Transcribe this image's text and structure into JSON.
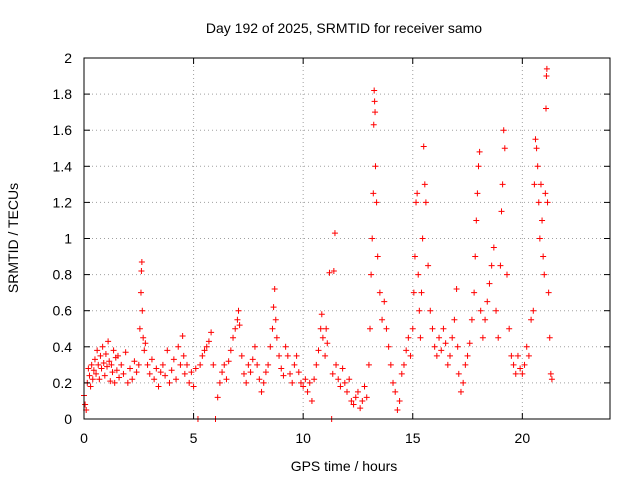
{
  "chart_data": {
    "type": "scatter",
    "title": "Day 192 of 2025, SRMTID for receiver samo",
    "xlabel": "GPS time / hours",
    "ylabel": "SRMTID / TECUs",
    "xlim": [
      0,
      24
    ],
    "ylim": [
      0,
      2
    ],
    "xticks": [
      0,
      5,
      10,
      15,
      20
    ],
    "yticks": [
      0,
      0.2,
      0.4,
      0.6,
      0.8,
      1,
      1.2,
      1.4,
      1.6,
      1.8,
      2
    ],
    "grid": true,
    "marker": "+",
    "color": "#ff0000",
    "series": [
      {
        "name": "SRMTID",
        "points": [
          [
            0.0,
            0.13
          ],
          [
            0.05,
            0.08
          ],
          [
            0.1,
            0.05
          ],
          [
            0.15,
            0.2
          ],
          [
            0.2,
            0.28
          ],
          [
            0.25,
            0.24
          ],
          [
            0.3,
            0.18
          ],
          [
            0.35,
            0.3
          ],
          [
            0.4,
            0.22
          ],
          [
            0.45,
            0.27
          ],
          [
            0.5,
            0.33
          ],
          [
            0.55,
            0.25
          ],
          [
            0.6,
            0.38
          ],
          [
            0.65,
            0.3
          ],
          [
            0.7,
            0.22
          ],
          [
            0.75,
            0.35
          ],
          [
            0.8,
            0.28
          ],
          [
            0.85,
            0.4
          ],
          [
            0.9,
            0.31
          ],
          [
            0.95,
            0.24
          ],
          [
            1.0,
            0.36
          ],
          [
            1.05,
            0.29
          ],
          [
            1.1,
            0.43
          ],
          [
            1.15,
            0.32
          ],
          [
            1.2,
            0.21
          ],
          [
            1.25,
            0.3
          ],
          [
            1.3,
            0.26
          ],
          [
            1.35,
            0.38
          ],
          [
            1.4,
            0.2
          ],
          [
            1.45,
            0.34
          ],
          [
            1.5,
            0.27
          ],
          [
            1.55,
            0.35
          ],
          [
            1.6,
            0.23
          ],
          [
            1.7,
            0.3
          ],
          [
            1.8,
            0.25
          ],
          [
            1.9,
            0.37
          ],
          [
            2.0,
            0.2
          ],
          [
            2.1,
            0.28
          ],
          [
            2.2,
            0.22
          ],
          [
            2.3,
            0.32
          ],
          [
            2.4,
            0.26
          ],
          [
            2.5,
            0.3
          ],
          [
            2.55,
            0.5
          ],
          [
            2.6,
            0.7
          ],
          [
            2.62,
            0.82
          ],
          [
            2.64,
            0.87
          ],
          [
            2.66,
            0.6
          ],
          [
            2.7,
            0.45
          ],
          [
            2.75,
            0.38
          ],
          [
            2.8,
            0.42
          ],
          [
            2.9,
            0.3
          ],
          [
            3.0,
            0.25
          ],
          [
            3.1,
            0.33
          ],
          [
            3.2,
            0.22
          ],
          [
            3.3,
            0.28
          ],
          [
            3.4,
            0.18
          ],
          [
            3.5,
            0.26
          ],
          [
            3.6,
            0.3
          ],
          [
            3.7,
            0.24
          ],
          [
            3.8,
            0.38
          ],
          [
            3.9,
            0.2
          ],
          [
            4.0,
            0.27
          ],
          [
            4.1,
            0.33
          ],
          [
            4.2,
            0.22
          ],
          [
            4.3,
            0.4
          ],
          [
            4.4,
            0.3
          ],
          [
            4.5,
            0.46
          ],
          [
            4.55,
            0.35
          ],
          [
            4.6,
            0.25
          ],
          [
            4.7,
            0.3
          ],
          [
            4.8,
            0.2
          ],
          [
            4.9,
            0.26
          ],
          [
            5.0,
            0.18
          ],
          [
            5.1,
            0.28
          ],
          [
            5.2,
            0.0
          ],
          [
            5.3,
            0.3
          ],
          [
            5.4,
            0.35
          ],
          [
            5.5,
            0.38
          ],
          [
            5.6,
            0.4
          ],
          [
            5.7,
            0.43
          ],
          [
            5.8,
            0.48
          ],
          [
            5.9,
            0.3
          ],
          [
            6.0,
            0.0
          ],
          [
            6.1,
            0.12
          ],
          [
            6.2,
            0.2
          ],
          [
            6.3,
            0.26
          ],
          [
            6.4,
            0.3
          ],
          [
            6.5,
            0.22
          ],
          [
            6.6,
            0.32
          ],
          [
            6.7,
            0.38
          ],
          [
            6.8,
            0.45
          ],
          [
            6.9,
            0.5
          ],
          [
            7.0,
            0.55
          ],
          [
            7.05,
            0.6
          ],
          [
            7.1,
            0.52
          ],
          [
            7.2,
            0.35
          ],
          [
            7.3,
            0.25
          ],
          [
            7.4,
            0.2
          ],
          [
            7.5,
            0.3
          ],
          [
            7.6,
            0.26
          ],
          [
            7.7,
            0.33
          ],
          [
            7.8,
            0.4
          ],
          [
            7.9,
            0.3
          ],
          [
            8.0,
            0.22
          ],
          [
            8.1,
            0.15
          ],
          [
            8.2,
            0.2
          ],
          [
            8.3,
            0.26
          ],
          [
            8.4,
            0.3
          ],
          [
            8.5,
            0.4
          ],
          [
            8.6,
            0.5
          ],
          [
            8.65,
            0.62
          ],
          [
            8.7,
            0.72
          ],
          [
            8.75,
            0.55
          ],
          [
            8.8,
            0.45
          ],
          [
            8.9,
            0.35
          ],
          [
            9.0,
            0.28
          ],
          [
            9.1,
            0.24
          ],
          [
            9.2,
            0.4
          ],
          [
            9.3,
            0.35
          ],
          [
            9.4,
            0.25
          ],
          [
            9.5,
            0.2
          ],
          [
            9.6,
            0.3
          ],
          [
            9.7,
            0.35
          ],
          [
            9.8,
            0.26
          ],
          [
            9.9,
            0.2
          ],
          [
            10.0,
            0.18
          ],
          [
            10.1,
            0.22
          ],
          [
            10.2,
            0.15
          ],
          [
            10.3,
            0.2
          ],
          [
            10.4,
            0.1
          ],
          [
            10.5,
            0.22
          ],
          [
            10.6,
            0.3
          ],
          [
            10.7,
            0.38
          ],
          [
            10.8,
            0.5
          ],
          [
            10.85,
            0.58
          ],
          [
            10.9,
            0.45
          ],
          [
            11.0,
            0.35
          ],
          [
            11.05,
            0.5
          ],
          [
            11.1,
            0.42
          ],
          [
            11.2,
            0.81
          ],
          [
            11.3,
            0.0
          ],
          [
            11.35,
            0.25
          ],
          [
            11.4,
            0.82
          ],
          [
            11.45,
            1.03
          ],
          [
            11.5,
            0.3
          ],
          [
            11.6,
            0.22
          ],
          [
            11.7,
            0.18
          ],
          [
            11.8,
            0.28
          ],
          [
            11.9,
            0.2
          ],
          [
            12.0,
            0.15
          ],
          [
            12.1,
            0.22
          ],
          [
            12.2,
            0.1
          ],
          [
            12.3,
            0.08
          ],
          [
            12.4,
            0.12
          ],
          [
            12.5,
            0.15
          ],
          [
            12.6,
            0.06
          ],
          [
            12.7,
            0.1
          ],
          [
            12.8,
            0.18
          ],
          [
            12.9,
            0.12
          ],
          [
            13.0,
            0.3
          ],
          [
            13.05,
            0.5
          ],
          [
            13.1,
            0.8
          ],
          [
            13.15,
            1.0
          ],
          [
            13.2,
            1.25
          ],
          [
            13.22,
            1.63
          ],
          [
            13.24,
            1.82
          ],
          [
            13.26,
            1.76
          ],
          [
            13.28,
            1.7
          ],
          [
            13.3,
            1.4
          ],
          [
            13.35,
            1.2
          ],
          [
            13.4,
            0.9
          ],
          [
            13.5,
            0.7
          ],
          [
            13.6,
            0.55
          ],
          [
            13.7,
            0.65
          ],
          [
            13.8,
            0.5
          ],
          [
            13.9,
            0.4
          ],
          [
            14.0,
            0.3
          ],
          [
            14.1,
            0.2
          ],
          [
            14.2,
            0.15
          ],
          [
            14.3,
            0.05
          ],
          [
            14.4,
            0.1
          ],
          [
            14.5,
            0.25
          ],
          [
            14.6,
            0.3
          ],
          [
            14.7,
            0.38
          ],
          [
            14.8,
            0.45
          ],
          [
            14.9,
            0.35
          ],
          [
            15.0,
            0.5
          ],
          [
            15.05,
            0.7
          ],
          [
            15.1,
            0.9
          ],
          [
            15.15,
            1.2
          ],
          [
            15.2,
            1.25
          ],
          [
            15.25,
            0.8
          ],
          [
            15.3,
            0.6
          ],
          [
            15.35,
            0.45
          ],
          [
            15.4,
            0.7
          ],
          [
            15.45,
            1.0
          ],
          [
            15.5,
            1.51
          ],
          [
            15.55,
            1.3
          ],
          [
            15.6,
            1.2
          ],
          [
            15.7,
            0.85
          ],
          [
            15.8,
            0.6
          ],
          [
            15.9,
            0.5
          ],
          [
            16.0,
            0.4
          ],
          [
            16.1,
            0.35
          ],
          [
            16.2,
            0.45
          ],
          [
            16.3,
            0.38
          ],
          [
            16.4,
            0.5
          ],
          [
            16.5,
            0.42
          ],
          [
            16.6,
            0.3
          ],
          [
            16.7,
            0.35
          ],
          [
            16.8,
            0.45
          ],
          [
            16.9,
            0.55
          ],
          [
            17.0,
            0.72
          ],
          [
            17.05,
            0.4
          ],
          [
            17.1,
            0.25
          ],
          [
            17.2,
            0.15
          ],
          [
            17.3,
            0.2
          ],
          [
            17.4,
            0.3
          ],
          [
            17.5,
            0.35
          ],
          [
            17.6,
            0.42
          ],
          [
            17.7,
            0.55
          ],
          [
            17.8,
            0.7
          ],
          [
            17.85,
            0.9
          ],
          [
            17.9,
            1.1
          ],
          [
            17.95,
            1.25
          ],
          [
            18.0,
            1.4
          ],
          [
            18.05,
            1.48
          ],
          [
            18.1,
            0.6
          ],
          [
            18.2,
            0.45
          ],
          [
            18.3,
            0.55
          ],
          [
            18.4,
            0.65
          ],
          [
            18.5,
            0.75
          ],
          [
            18.6,
            0.85
          ],
          [
            18.7,
            0.95
          ],
          [
            18.8,
            0.6
          ],
          [
            18.9,
            0.45
          ],
          [
            19.0,
            0.85
          ],
          [
            19.05,
            1.15
          ],
          [
            19.1,
            1.3
          ],
          [
            19.15,
            1.6
          ],
          [
            19.2,
            1.5
          ],
          [
            19.3,
            0.8
          ],
          [
            19.4,
            0.5
          ],
          [
            19.5,
            0.35
          ],
          [
            19.6,
            0.3
          ],
          [
            19.7,
            0.25
          ],
          [
            19.8,
            0.35
          ],
          [
            19.9,
            0.28
          ],
          [
            20.0,
            0.25
          ],
          [
            20.1,
            0.3
          ],
          [
            20.2,
            0.4
          ],
          [
            20.3,
            0.35
          ],
          [
            20.4,
            0.55
          ],
          [
            20.5,
            0.6
          ],
          [
            20.55,
            1.3
          ],
          [
            20.6,
            1.55
          ],
          [
            20.65,
            1.5
          ],
          [
            20.7,
            1.4
          ],
          [
            20.75,
            1.2
          ],
          [
            20.8,
            1.0
          ],
          [
            20.85,
            1.3
          ],
          [
            20.9,
            1.1
          ],
          [
            20.95,
            0.9
          ],
          [
            21.0,
            0.8
          ],
          [
            21.05,
            1.25
          ],
          [
            21.08,
            1.72
          ],
          [
            21.1,
            1.9
          ],
          [
            21.12,
            1.94
          ],
          [
            21.15,
            1.2
          ],
          [
            21.2,
            0.7
          ],
          [
            21.25,
            0.45
          ],
          [
            21.3,
            0.25
          ],
          [
            21.35,
            0.22
          ]
        ]
      }
    ]
  }
}
